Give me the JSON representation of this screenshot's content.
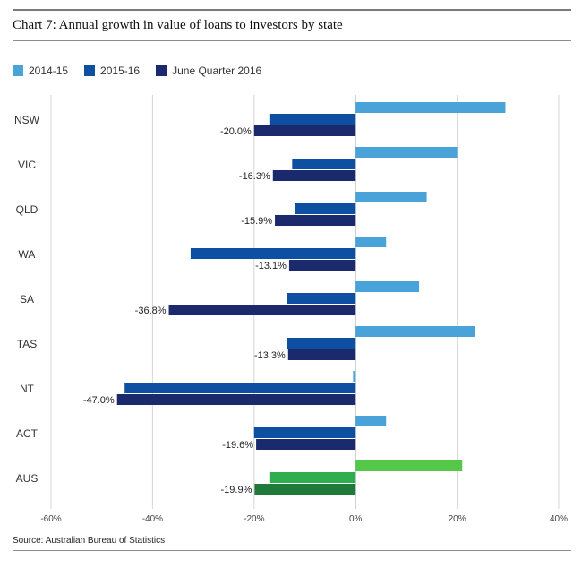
{
  "header": {
    "title": "Chart 7: Annual growth in value of loans to investors by state",
    "source": "Source: Australian Bureau of Statistics"
  },
  "legend": [
    {
      "label": "2014-15",
      "color": "#4aa3d8"
    },
    {
      "label": "2015-16",
      "color": "#0d4fa0"
    },
    {
      "label": "June Quarter 2016",
      "color": "#1a2a6c"
    }
  ],
  "colors": {
    "highlight": [
      "#55c84a",
      "#2eae4e",
      "#1f7a3a"
    ],
    "grid": "#d6d6d6"
  },
  "chart_data": {
    "type": "bar",
    "orientation": "horizontal",
    "title": "Chart 7: Annual growth in value of loans to investors by state",
    "categories": [
      "NSW",
      "VIC",
      "QLD",
      "WA",
      "SA",
      "TAS",
      "NT",
      "ACT",
      "AUS"
    ],
    "series": [
      {
        "name": "2014-15",
        "values": [
          29.5,
          20.0,
          14.0,
          6.0,
          12.5,
          23.5,
          -0.5,
          6.0,
          21.0
        ]
      },
      {
        "name": "2015-16",
        "values": [
          -17.0,
          -12.5,
          -12.0,
          -32.5,
          -13.5,
          -13.5,
          -45.5,
          -20.0,
          -17.0
        ]
      },
      {
        "name": "June Quarter 2016",
        "values": [
          -20.0,
          -16.3,
          -15.9,
          -13.1,
          -36.8,
          -13.3,
          -47.0,
          -19.6,
          -19.9
        ]
      }
    ],
    "data_labels": [
      "-20.0%",
      "-16.3%",
      "-15.9%",
      "-13.1%",
      "-36.8%",
      "-13.3%",
      "-47.0%",
      "-19.6%",
      "-19.9%"
    ],
    "xticks": [
      "-60%",
      "-40%",
      "-20%",
      "0%",
      "20%",
      "40%"
    ],
    "xtick_values": [
      -60,
      -40,
      -20,
      0,
      20,
      40
    ],
    "xlim": [
      -60,
      40
    ],
    "grid": true,
    "highlight_category": "AUS",
    "legend_position": "top-left"
  }
}
